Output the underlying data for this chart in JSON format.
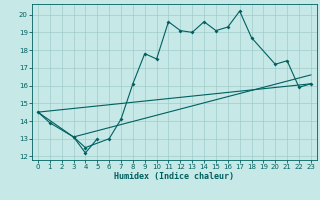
{
  "xlabel": "Humidex (Indice chaleur)",
  "xlim": [
    -0.5,
    23.5
  ],
  "ylim": [
    11.8,
    20.6
  ],
  "yticks": [
    12,
    13,
    14,
    15,
    16,
    17,
    18,
    19,
    20
  ],
  "xticks": [
    0,
    1,
    2,
    3,
    4,
    5,
    6,
    7,
    8,
    9,
    10,
    11,
    12,
    13,
    14,
    15,
    16,
    17,
    18,
    19,
    20,
    21,
    22,
    23
  ],
  "bg_color": "#c6e8e6",
  "grid_color": "#a0ccca",
  "line_color": "#006060",
  "line1_x": [
    0,
    1,
    3,
    4,
    6,
    7,
    8,
    9,
    10,
    11,
    12,
    13,
    14,
    15,
    16,
    17,
    18,
    20,
    21,
    22,
    23
  ],
  "line1_y": [
    14.5,
    13.9,
    13.1,
    12.5,
    13.0,
    14.1,
    16.1,
    17.8,
    17.5,
    19.6,
    19.1,
    19.0,
    19.6,
    19.1,
    19.3,
    20.2,
    18.7,
    17.2,
    17.4,
    15.9,
    16.1
  ],
  "line2_x": [
    3,
    4,
    5
  ],
  "line2_y": [
    13.1,
    12.2,
    13.0
  ],
  "line3_x": [
    0,
    23
  ],
  "line3_y": [
    14.5,
    16.1
  ],
  "line4_x": [
    0,
    3,
    23
  ],
  "line4_y": [
    14.5,
    13.1,
    16.6
  ]
}
